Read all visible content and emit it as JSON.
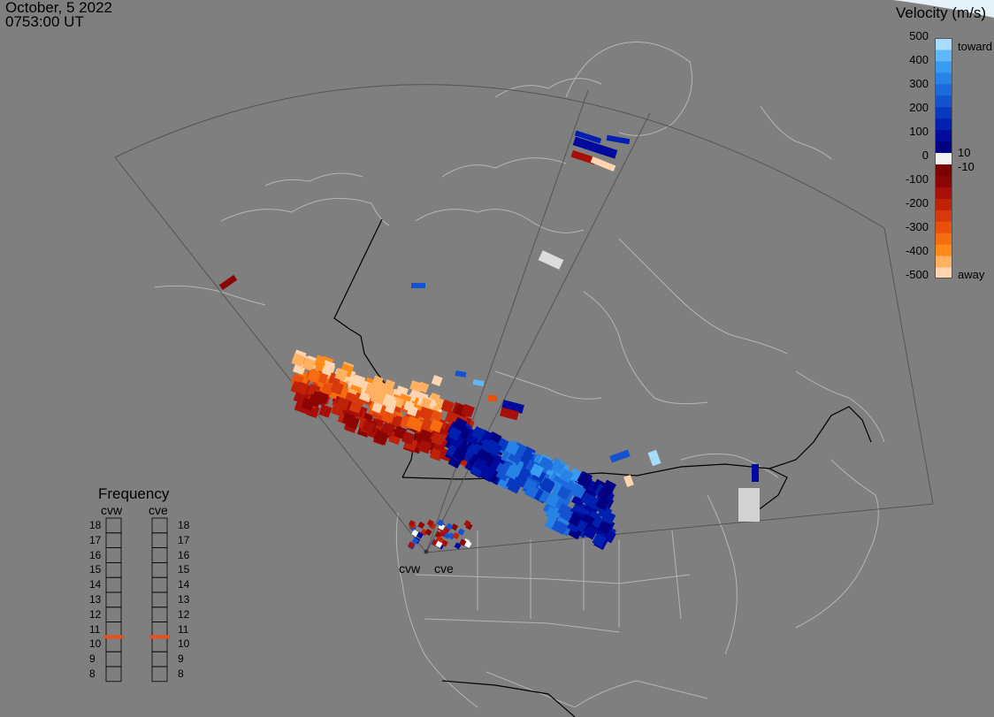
{
  "header": {
    "date": "October, 5 2022",
    "time": "0753:00 UT"
  },
  "colorbar": {
    "title": "Velocity (m/s)",
    "ticks": [
      "500",
      "400",
      "300",
      "200",
      "100",
      "0",
      "-100",
      "-200",
      "-300",
      "-400",
      "-500"
    ],
    "inner_labels": [
      "10",
      "-10"
    ],
    "end_labels": {
      "top": "toward",
      "bottom": "away"
    },
    "colors": [
      "#ffd5b0",
      "#ffb060",
      "#ff8a1a",
      "#f56d10",
      "#e8500c",
      "#d8390c",
      "#c02208",
      "#a80f08",
      "#8c0505",
      "#7a0000",
      "#f0f0f0",
      "#000080",
      "#000a9c",
      "#0020b0",
      "#0838c0",
      "#1452d0",
      "#1c6adb",
      "#2883e6",
      "#3a9cf0",
      "#62b8f7",
      "#a8dcff"
    ]
  },
  "frequency_panel": {
    "title": "Frequency",
    "radars": [
      "cvw",
      "cve"
    ],
    "values": [
      "18",
      "17",
      "16",
      "15",
      "14",
      "13",
      "12",
      "11",
      "10",
      "9",
      "8"
    ],
    "selected": {
      "cvw": 10.5,
      "cve": 10.5
    },
    "marker_color": "#e8501a"
  },
  "radar_sites": {
    "labels": [
      "cvw",
      "cve"
    ]
  },
  "map": {
    "land_color": "#808080",
    "coast_color": "#b4b4b4",
    "border_color": "#000000",
    "fov_color": "#555555"
  }
}
